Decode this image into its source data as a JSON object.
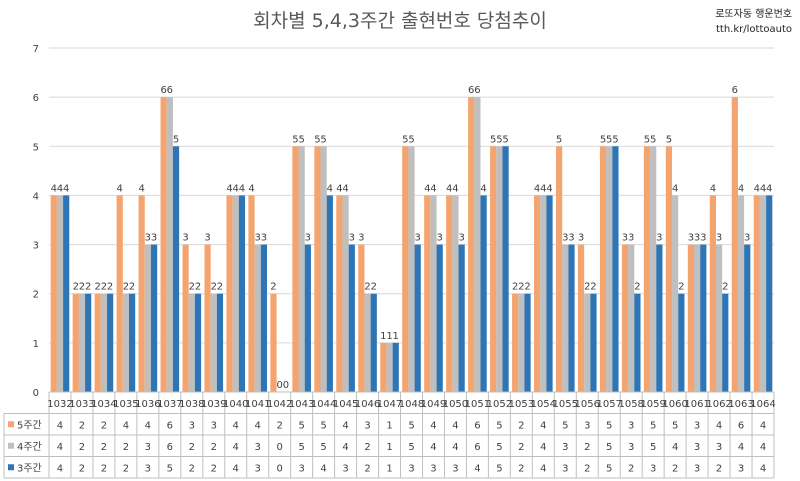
{
  "brand": {
    "line1": "로또자동 행운번호",
    "line2": "tth.kr/lottoauto"
  },
  "chart_data": {
    "type": "bar",
    "title": "회차별 5,4,3주간 출현번호 당첨추이",
    "xlabel": "",
    "ylabel": "",
    "ylim": [
      0,
      7
    ],
    "yticks": [
      0,
      1,
      2,
      3,
      4,
      5,
      6,
      7
    ],
    "grid": true,
    "legend": "data-table",
    "categories": [
      "1032",
      "1033",
      "1034",
      "1035",
      "1036",
      "1037",
      "1038",
      "1039",
      "1040",
      "1041",
      "1042",
      "1043",
      "1044",
      "1045",
      "1046",
      "1047",
      "1048",
      "1049",
      "1050",
      "1051",
      "1052",
      "1053",
      "1054",
      "1055",
      "1056",
      "1057",
      "1058",
      "1059",
      "1060",
      "1061",
      "1062",
      "1063",
      "1064"
    ],
    "series": [
      {
        "name": "5주간",
        "color": "#F4A46F",
        "values": [
          4,
          2,
          2,
          4,
          4,
          6,
          3,
          3,
          4,
          4,
          2,
          5,
          5,
          4,
          3,
          1,
          5,
          4,
          4,
          6,
          5,
          2,
          4,
          5,
          3,
          5,
          3,
          5,
          5,
          3,
          4,
          6,
          4
        ]
      },
      {
        "name": "4주간",
        "color": "#BFBFBF",
        "values": [
          4,
          2,
          2,
          2,
          3,
          6,
          2,
          2,
          4,
          3,
          0,
          5,
          5,
          4,
          2,
          1,
          5,
          4,
          4,
          6,
          5,
          2,
          4,
          3,
          2,
          5,
          3,
          5,
          4,
          3,
          3,
          4,
          4
        ]
      },
      {
        "name": "3주간",
        "color": "#2E75B6",
        "values": [
          4,
          2,
          2,
          2,
          3,
          5,
          2,
          2,
          4,
          3,
          0,
          3,
          4,
          3,
          2,
          1,
          3,
          3,
          3,
          4,
          5,
          2,
          4,
          3,
          2,
          5,
          2,
          3,
          2,
          3,
          2,
          3,
          4
        ]
      }
    ]
  }
}
